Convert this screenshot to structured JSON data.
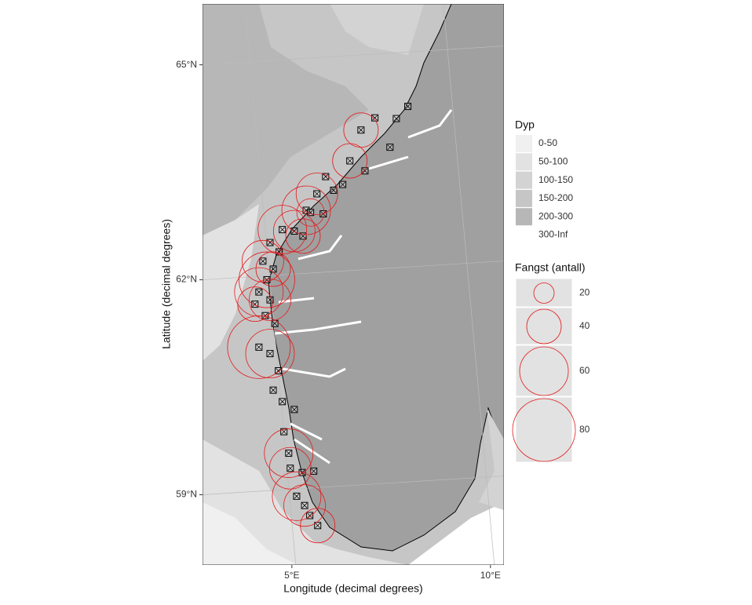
{
  "chart_data": {
    "type": "map",
    "xlabel": "Longitude (decimal degrees)",
    "ylabel": "Latitude (decimal degrees)",
    "xlim": [
      2.75,
      10.34
    ],
    "ylim": [
      58.02,
      65.85
    ],
    "xticks": [
      {
        "value": 5,
        "label": "5°E"
      },
      {
        "value": 10,
        "label": "10°E"
      }
    ],
    "yticks": [
      {
        "value": 59,
        "label": "59°N"
      },
      {
        "value": 62,
        "label": "62°N"
      },
      {
        "value": 65,
        "label": "65°N"
      }
    ],
    "grid": true,
    "land_color": "#a0a0a0",
    "catch_color": "#e31a1c",
    "points": {
      "lon": [
        6.74,
        7.09,
        7.63,
        7.92,
        7.47,
        6.46,
        6.84,
        5.85,
        6.28,
        5.63,
        6.05,
        5.36,
        5.47,
        5.79,
        4.76,
        5.06,
        5.28,
        4.45,
        4.68,
        4.27,
        4.53,
        4.37,
        4.17,
        4.45,
        4.07,
        4.33,
        4.57,
        4.17,
        4.45,
        4.66,
        4.53,
        4.76,
        5.06,
        4.8,
        4.92,
        4.96,
        5.26,
        5.55,
        5.12,
        5.32,
        5.45,
        5.65
      ],
      "lat": [
        64.09,
        64.26,
        64.25,
        64.42,
        63.85,
        63.66,
        63.52,
        63.44,
        63.33,
        63.2,
        63.25,
        62.97,
        62.94,
        62.92,
        62.7,
        62.68,
        62.61,
        62.52,
        62.39,
        62.26,
        62.15,
        62.0,
        61.83,
        61.72,
        61.66,
        61.5,
        61.39,
        61.06,
        60.97,
        60.73,
        60.46,
        60.3,
        60.19,
        59.88,
        59.58,
        59.37,
        59.31,
        59.33,
        58.98,
        58.85,
        58.71,
        58.57
      ],
      "catch": [
        40,
        0,
        0,
        0,
        0,
        40,
        0,
        0,
        0,
        50,
        0,
        60,
        30,
        0,
        60,
        50,
        40,
        0,
        0,
        50,
        40,
        70,
        60,
        50,
        40,
        0,
        0,
        80,
        60,
        0,
        0,
        0,
        0,
        0,
        60,
        50,
        0,
        0,
        60,
        50,
        0,
        40
      ]
    },
    "depth_legend": {
      "title": "Dyp",
      "labels": [
        "0-50",
        "50-100",
        "100-150",
        "150-200",
        "200-300",
        "300-Inf"
      ],
      "colors": [
        "#f0f0f0",
        "#e2e2e2",
        "#d3d3d3",
        "#c6c6c6",
        "#b7b7b7",
        "#ffffff"
      ]
    },
    "size_legend": {
      "title": "Fangst (antall)",
      "values": [
        20,
        40,
        60,
        80
      ]
    }
  }
}
